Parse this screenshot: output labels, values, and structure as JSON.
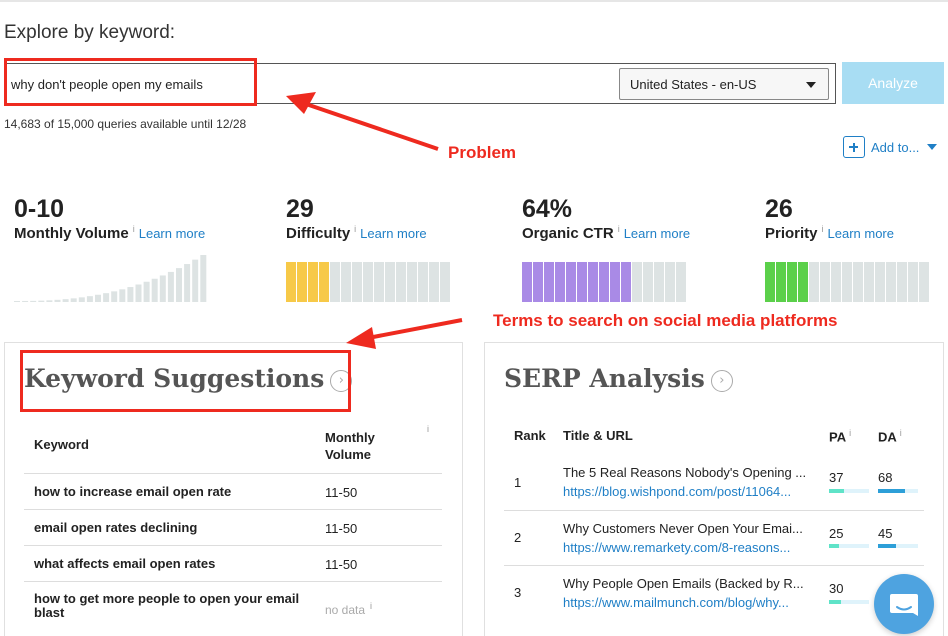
{
  "explore": {
    "title": "Explore by keyword:",
    "query_value": "why don't people open my emails",
    "locale": "United States - en-US",
    "analyze_label": "Analyze",
    "quota": "14,683 of 15,000 queries available until 12/28"
  },
  "add_to": {
    "label": "Add to..."
  },
  "metrics": [
    {
      "value": "0-10",
      "label": "Monthly Volume",
      "learn": "Learn more",
      "info": "i"
    },
    {
      "value": "29",
      "label": "Difficulty",
      "learn": "Learn more",
      "info": "i",
      "fill_fraction": 0.29,
      "color": "#f7c948"
    },
    {
      "value": "64%",
      "label": "Organic CTR",
      "learn": "Learn more",
      "info": "i",
      "fill_fraction": 0.64,
      "color": "#a98ae6"
    },
    {
      "value": "26",
      "label": "Priority",
      "learn": "Learn more",
      "info": "i",
      "fill_fraction": 0.26,
      "color": "#5bd04a"
    }
  ],
  "keyword_suggestions": {
    "title": "Keyword Suggestions",
    "col_keyword": "Keyword",
    "col_volume": "Monthly Volume",
    "info": "i",
    "rows": [
      {
        "keyword": "how to increase email open rate",
        "volume": "11-50"
      },
      {
        "keyword": "email open rates declining",
        "volume": "11-50"
      },
      {
        "keyword": "what affects email open rates",
        "volume": "11-50"
      },
      {
        "keyword": "how to get more people to open your email blast",
        "volume": "no data"
      }
    ]
  },
  "serp_analysis": {
    "title": "SERP Analysis",
    "col_rank": "Rank",
    "col_title": "Title & URL",
    "col_pa": "PA",
    "col_da": "DA",
    "info": "i",
    "rows": [
      {
        "rank": "1",
        "title": "The 5 Real Reasons Nobody's Opening ...",
        "url": "https://blog.wishpond.com/post/11064...",
        "pa": "37",
        "da": "68"
      },
      {
        "rank": "2",
        "title": "Why Customers Never Open Your Emai...",
        "url": "https://www.remarkety.com/8-reasons...",
        "pa": "25",
        "da": "45"
      },
      {
        "rank": "3",
        "title": "Why People Open Emails (Backed by R...",
        "url": "https://www.mailmunch.com/blog/why...",
        "pa": "30",
        "da": ""
      }
    ]
  },
  "annotations": {
    "problem": "Problem",
    "terms": "Terms to search on social media platforms"
  },
  "colors": {
    "accent": "#1f7fc6",
    "annotation": "#ee2a1f",
    "analyze_button": "#a8ddf3",
    "pa_bar": "#5fe3c8",
    "da_bar": "#2d9fd8"
  }
}
